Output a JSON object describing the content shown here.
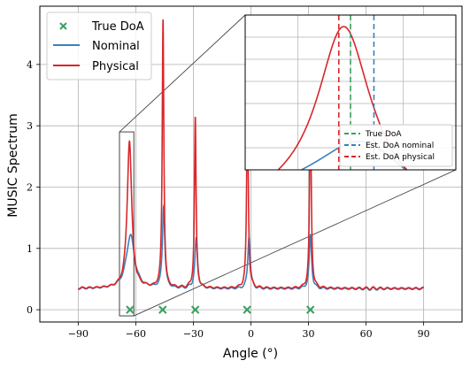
{
  "chart_data": {
    "type": "line",
    "xlabel": "Angle (°)",
    "ylabel": "MUSIC Spectrum",
    "xlim": [
      -110,
      110
    ],
    "ylim": [
      -0.2,
      4.95
    ],
    "xticks": [
      -90,
      -60,
      -30,
      0,
      30,
      60,
      90
    ],
    "xtick_labels": [
      "−90",
      "−60",
      "−30",
      "0",
      "30",
      "60",
      "90"
    ],
    "yticks": [
      0,
      1,
      2,
      3,
      4
    ],
    "ytick_labels": [
      "0",
      "1",
      "2",
      "3",
      "4"
    ],
    "grid": true,
    "legend": {
      "placement": "top-left"
    },
    "colors": {
      "nominal": "#3e7fba",
      "physical": "#d9262b",
      "true_doa": "#3a9e63"
    },
    "baseline": {
      "nominal": 0.34,
      "physical": 0.35
    },
    "true_doa": {
      "name": "True DoA",
      "x": [
        -63,
        -46,
        -29,
        -2,
        31
      ],
      "y": [
        0,
        0,
        0,
        0,
        0
      ]
    },
    "series": [
      {
        "name": "Nominal",
        "peaks": [
          {
            "x": -62.8,
            "height": 1.22,
            "width": 2.6
          },
          {
            "x": -45.5,
            "height": 1.67,
            "width": 0.75
          },
          {
            "x": -28.5,
            "height": 1.15,
            "width": 0.85
          },
          {
            "x": -1.0,
            "height": 1.2,
            "width": 0.75
          },
          {
            "x": 31.0,
            "height": 1.2,
            "width": 0.75
          }
        ]
      },
      {
        "name": "Physical",
        "peaks": [
          {
            "x": -63.3,
            "height": 2.76,
            "width": 1.4
          },
          {
            "x": -45.8,
            "height": 4.72,
            "width": 0.5
          },
          {
            "x": -29.0,
            "height": 3.12,
            "width": 0.5
          },
          {
            "x": -1.8,
            "height": 3.5,
            "width": 0.5
          },
          {
            "x": 31.0,
            "height": 3.5,
            "width": 0.5
          }
        ]
      }
    ],
    "inset": {
      "xlim": [
        -67.5,
        -58.5
      ],
      "ylim": [
        0.85,
        2.9
      ],
      "legend": [
        {
          "label": "True DoA",
          "color": "#3a9e63"
        },
        {
          "label": "Est. DoA nominal",
          "color": "#3e7fba"
        },
        {
          "label": "Est. DoA physical",
          "color": "#d9262b"
        }
      ],
      "vlines": {
        "true_doa": -63.0,
        "est_nominal": -62.0,
        "est_physical": -63.5
      }
    },
    "zoom_box": {
      "x": [
        -68.5,
        -61
      ],
      "y": [
        -0.1,
        2.9
      ]
    }
  }
}
